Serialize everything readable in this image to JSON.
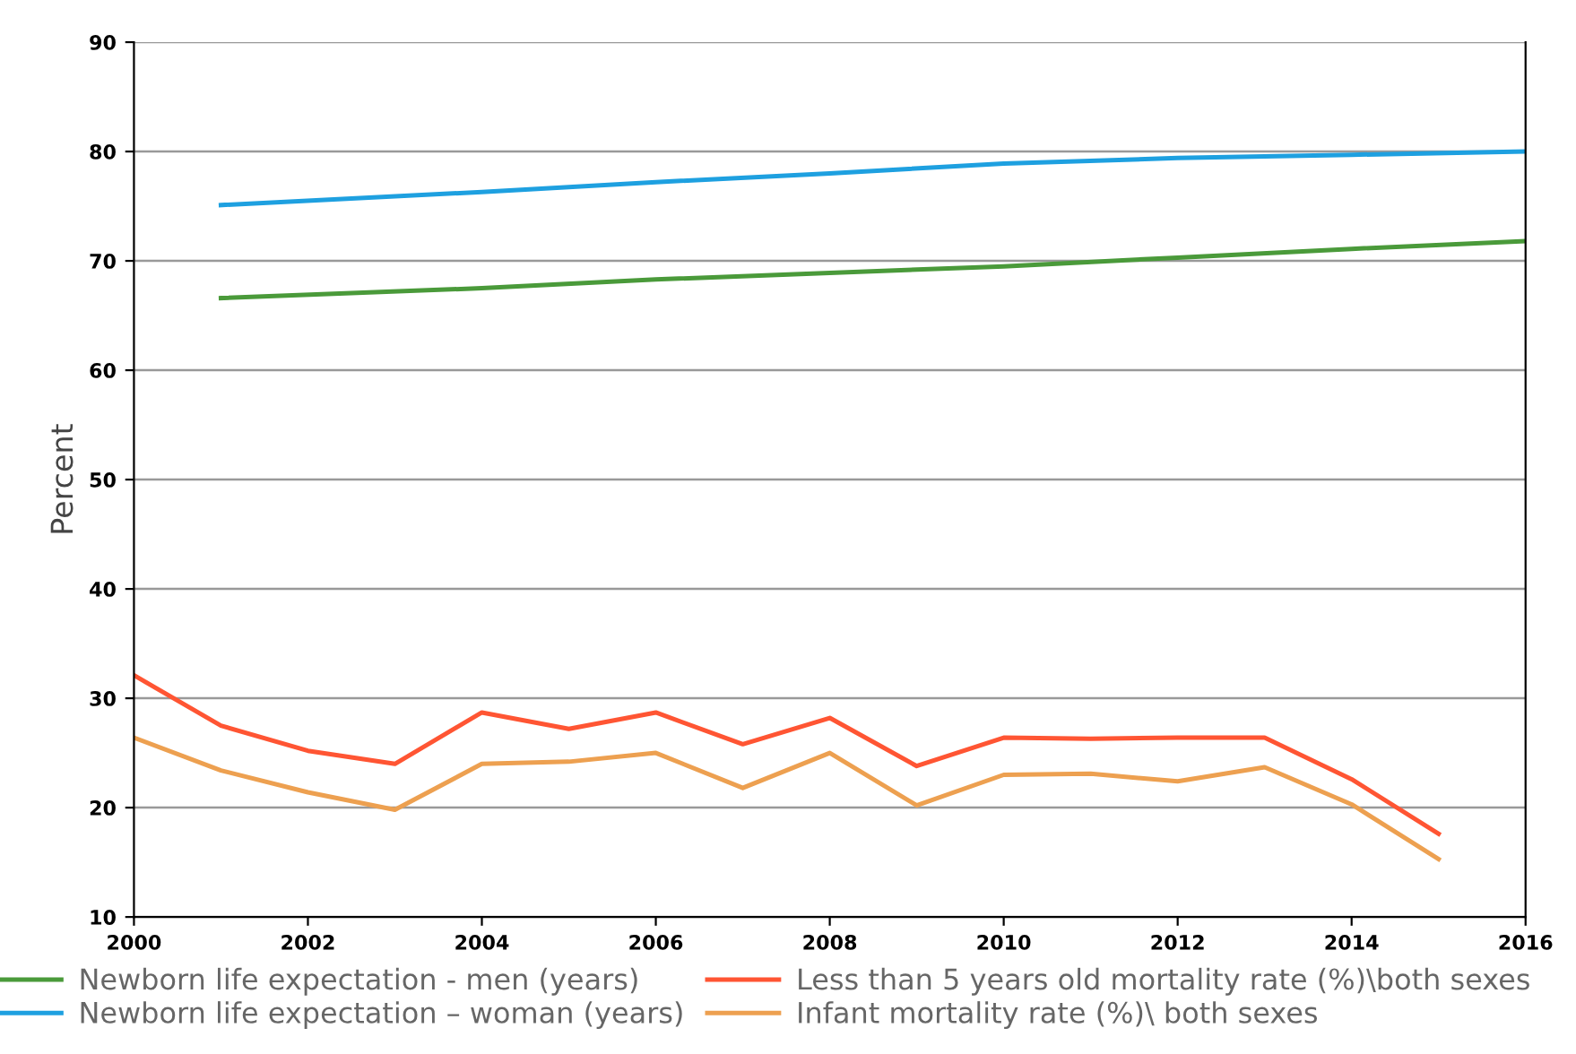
{
  "chart_data": {
    "type": "line",
    "ylabel": "Percent",
    "xlim": [
      2000,
      2016
    ],
    "xticks": [
      2000,
      2002,
      2004,
      2006,
      2008,
      2010,
      2012,
      2014,
      2016
    ],
    "ylim": [
      10,
      90
    ],
    "yticks": [
      10,
      20,
      30,
      40,
      50,
      60,
      70,
      80,
      90
    ],
    "grid": "y",
    "legend": "bottom",
    "marker": "none",
    "line_style": "solid",
    "series": [
      {
        "name": "Newborn life expectation - men (years)",
        "color": "#4a9a3a",
        "x": [
          2001,
          2004,
          2006,
          2008,
          2010,
          2012,
          2014,
          2016
        ],
        "values": [
          66.6,
          67.5,
          68.3,
          68.9,
          69.5,
          70.3,
          71.1,
          71.8
        ]
      },
      {
        "name": "Newborn life expectation – woman (years)",
        "color": "#1ea0e0",
        "x": [
          2001,
          2004,
          2006,
          2008,
          2010,
          2012,
          2014,
          2016
        ],
        "values": [
          75.1,
          76.3,
          77.2,
          78.0,
          78.9,
          79.4,
          79.7,
          80.0
        ]
      },
      {
        "name": "Less than 5 years old mortality rate (%)\\both sexes",
        "color": "#ff5533",
        "x": [
          2000,
          2001,
          2002,
          2003,
          2004,
          2005,
          2006,
          2007,
          2008,
          2009,
          2010,
          2011,
          2012,
          2013,
          2014,
          2015
        ],
        "values": [
          32.1,
          27.5,
          25.2,
          24.0,
          28.7,
          27.2,
          28.7,
          25.8,
          28.2,
          23.8,
          26.4,
          26.3,
          26.4,
          26.4,
          22.6,
          17.6
        ]
      },
      {
        "name": "Infant mortality rate (%)\\ both sexes",
        "color": "#eda050",
        "x": [
          2000,
          2001,
          2002,
          2003,
          2004,
          2005,
          2006,
          2007,
          2008,
          2009,
          2010,
          2011,
          2012,
          2013,
          2014,
          2015
        ],
        "values": [
          26.4,
          23.4,
          21.4,
          19.8,
          24.0,
          24.2,
          25.0,
          21.8,
          25.0,
          20.2,
          23.0,
          23.1,
          22.4,
          23.7,
          20.3,
          15.3
        ]
      }
    ]
  }
}
